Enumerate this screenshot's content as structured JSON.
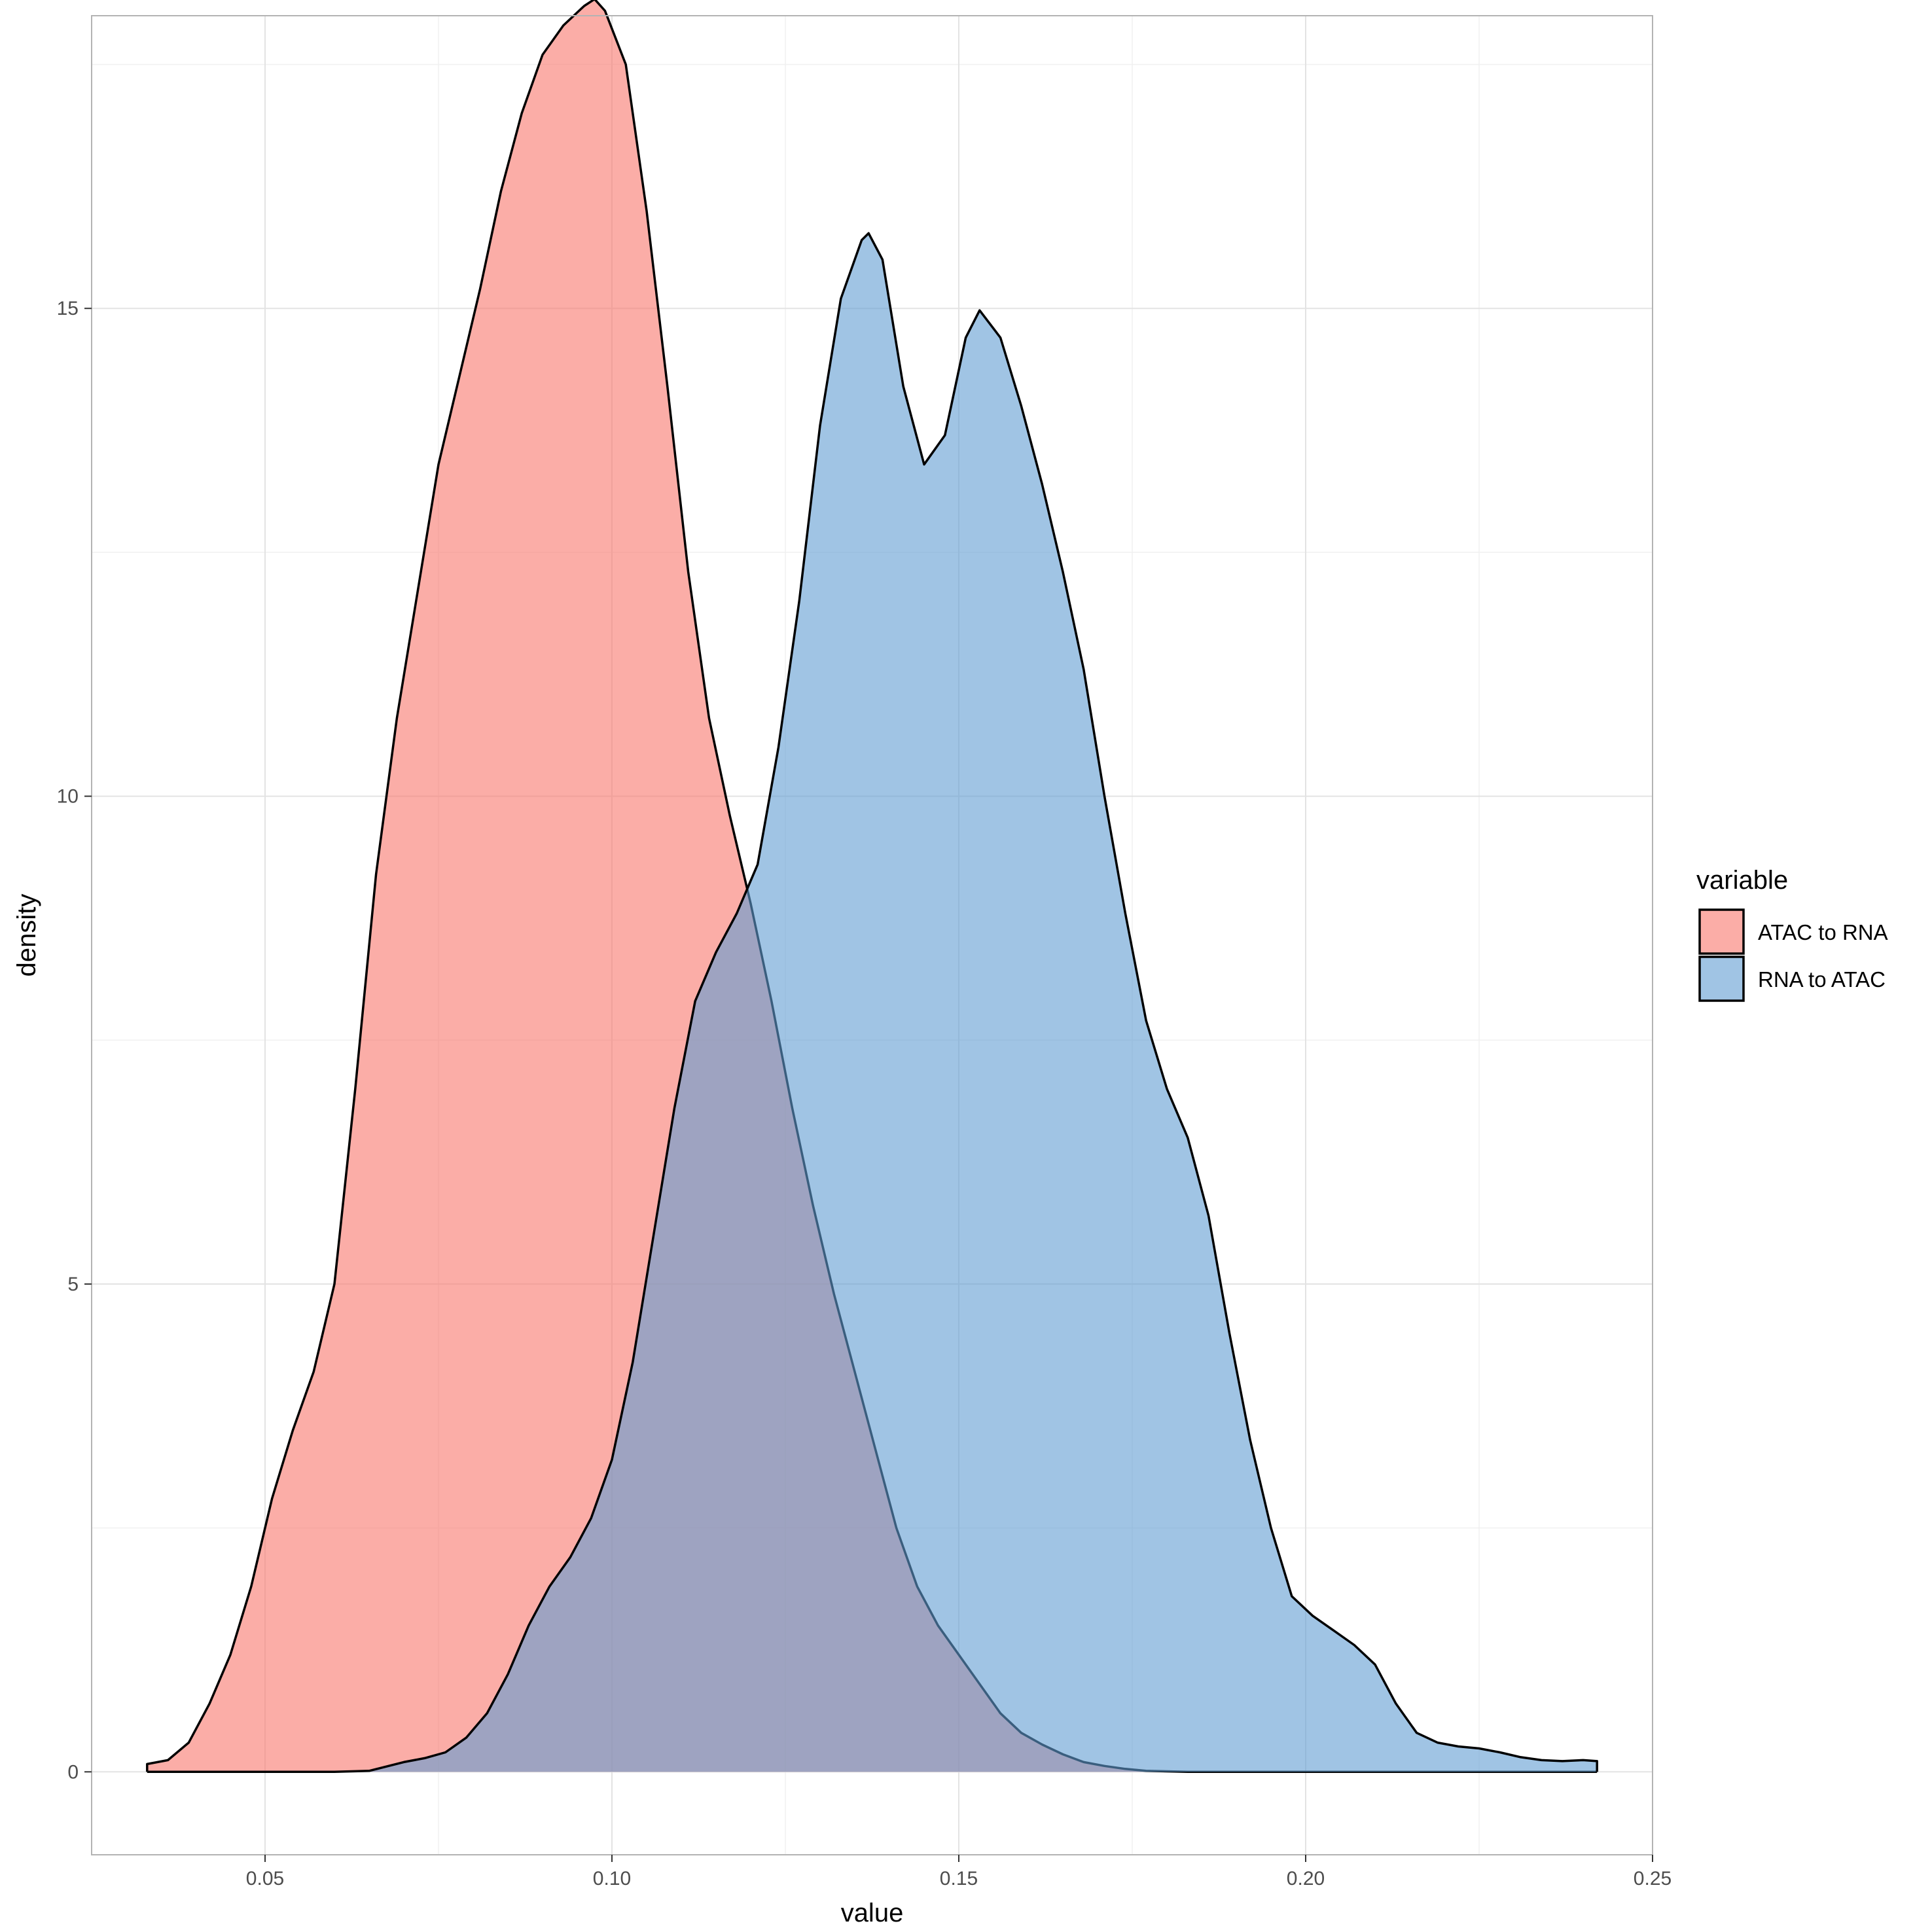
{
  "chart_data": {
    "type": "area",
    "title": "",
    "xlabel": "value",
    "ylabel": "density",
    "xlim": [
      0.025,
      0.25
    ],
    "ylim": [
      -0.85,
      18.0
    ],
    "x_ticks": [
      0.05,
      0.1,
      0.15,
      0.2,
      0.25
    ],
    "x_tick_labels": [
      "0.05",
      "0.10",
      "0.15",
      "0.20",
      "0.25"
    ],
    "y_ticks": [
      0,
      5,
      10,
      15
    ],
    "y_tick_labels": [
      "0",
      "5",
      "10",
      "15"
    ],
    "grid": true,
    "legend": {
      "title": "variable",
      "position": "right"
    },
    "series": [
      {
        "name": "ATAC to RNA",
        "color": "#F8766D",
        "x": [
          0.033,
          0.036,
          0.039,
          0.042,
          0.045,
          0.048,
          0.051,
          0.054,
          0.057,
          0.06,
          0.063,
          0.066,
          0.069,
          0.072,
          0.075,
          0.078,
          0.081,
          0.084,
          0.087,
          0.09,
          0.093,
          0.096,
          0.0975,
          0.099,
          0.102,
          0.105,
          0.108,
          0.111,
          0.114,
          0.117,
          0.12,
          0.123,
          0.126,
          0.129,
          0.132,
          0.135,
          0.138,
          0.141,
          0.144,
          0.147,
          0.15,
          0.153,
          0.156,
          0.159,
          0.162,
          0.165,
          0.168,
          0.171,
          0.174,
          0.177,
          0.18,
          0.183,
          0.186,
          0.189,
          0.192,
          0.195,
          0.198,
          0.201,
          0.204,
          0.207,
          0.21,
          0.213,
          0.216,
          0.219,
          0.222,
          0.225,
          0.228,
          0.231,
          0.234,
          0.237,
          0.24,
          0.242
        ],
        "values": [
          0.08,
          0.12,
          0.3,
          0.7,
          1.2,
          1.9,
          2.8,
          3.5,
          4.1,
          5.0,
          7.0,
          9.2,
          10.8,
          12.1,
          13.4,
          14.3,
          15.2,
          16.2,
          17.0,
          17.6,
          17.9,
          18.1,
          18.17,
          18.05,
          17.5,
          16.0,
          14.2,
          12.3,
          10.8,
          9.8,
          8.9,
          7.9,
          6.8,
          5.8,
          4.9,
          4.1,
          3.3,
          2.5,
          1.9,
          1.5,
          1.2,
          0.9,
          0.6,
          0.4,
          0.28,
          0.18,
          0.1,
          0.06,
          0.03,
          0.01,
          0.005,
          0.0,
          0.0,
          0.0,
          0.0,
          0.0,
          0.0,
          0.0,
          0.0,
          0.0,
          0.0,
          0.0,
          0.0,
          0.0,
          0.0,
          0.0,
          0.0,
          0.0,
          0.0,
          0.0,
          0.0,
          0.0
        ]
      },
      {
        "name": "RNA to ATAC",
        "color": "#619CD2",
        "x": [
          0.033,
          0.04,
          0.05,
          0.06,
          0.065,
          0.07,
          0.073,
          0.076,
          0.079,
          0.082,
          0.085,
          0.088,
          0.091,
          0.094,
          0.097,
          0.1,
          0.103,
          0.106,
          0.109,
          0.112,
          0.115,
          0.118,
          0.121,
          0.124,
          0.127,
          0.13,
          0.133,
          0.136,
          0.137,
          0.139,
          0.142,
          0.145,
          0.148,
          0.151,
          0.153,
          0.156,
          0.159,
          0.162,
          0.165,
          0.168,
          0.171,
          0.174,
          0.177,
          0.18,
          0.183,
          0.186,
          0.189,
          0.192,
          0.195,
          0.198,
          0.201,
          0.204,
          0.207,
          0.21,
          0.213,
          0.216,
          0.219,
          0.222,
          0.225,
          0.228,
          0.231,
          0.234,
          0.237,
          0.24,
          0.242
        ],
        "values": [
          0.0,
          0.0,
          0.0,
          0.0,
          0.01,
          0.1,
          0.14,
          0.2,
          0.35,
          0.6,
          1.0,
          1.5,
          1.9,
          2.2,
          2.6,
          3.2,
          4.2,
          5.5,
          6.8,
          7.9,
          8.4,
          8.8,
          9.3,
          10.5,
          12.0,
          13.8,
          15.1,
          15.7,
          15.77,
          15.5,
          14.2,
          13.4,
          13.7,
          14.7,
          14.98,
          14.7,
          14.0,
          13.2,
          12.3,
          11.3,
          10.0,
          8.8,
          7.7,
          7.0,
          6.5,
          5.7,
          4.5,
          3.4,
          2.5,
          1.8,
          1.6,
          1.45,
          1.3,
          1.1,
          0.7,
          0.4,
          0.3,
          0.26,
          0.24,
          0.2,
          0.15,
          0.12,
          0.11,
          0.12,
          0.11
        ]
      }
    ]
  }
}
